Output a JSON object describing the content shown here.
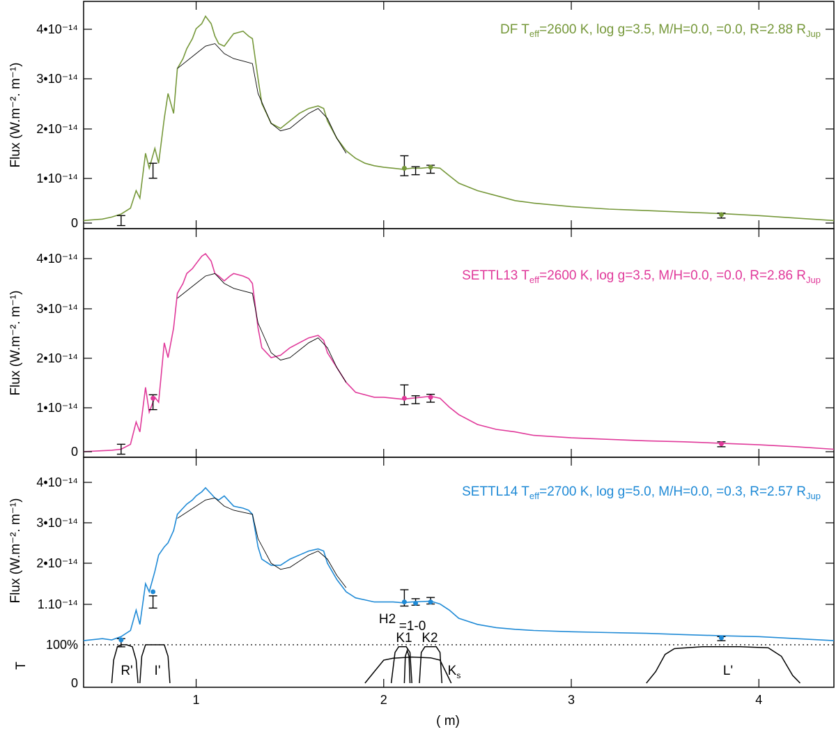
{
  "chart_data": [
    {
      "type": "line",
      "panel": "top",
      "model_label": {
        "prefix": "DF T",
        "sub": "eff",
        "rest": "=2600 K, log g=3.5, M/H=0.0,    =0.0, R=2.88 R",
        "sub2": "Jup"
      },
      "color": "#76983a",
      "ylabel": "Flux (W.m⁻². m⁻¹)",
      "yticks": [
        "0",
        "1•10⁻¹⁴",
        "2•10⁻¹⁴",
        "3•10⁻¹⁴",
        "4•10⁻¹⁴"
      ],
      "ylim": [
        0,
        4.5
      ],
      "series": [
        {
          "x": [
            0.4,
            0.5,
            0.55,
            0.6,
            0.65,
            0.68,
            0.7,
            0.73,
            0.75,
            0.78,
            0.8,
            0.83,
            0.85,
            0.88,
            0.9,
            0.93,
            0.95,
            0.98,
            1.0,
            1.03,
            1.05,
            1.08,
            1.1,
            1.12,
            1.15,
            1.18,
            1.2,
            1.25,
            1.28,
            1.3,
            1.33,
            1.35,
            1.4,
            1.45,
            1.5,
            1.55,
            1.6,
            1.65,
            1.68,
            1.7,
            1.75,
            1.8,
            1.85,
            1.9,
            1.95,
            2.0,
            2.05,
            2.1,
            2.15,
            2.2,
            2.25,
            2.3,
            2.35,
            2.4,
            2.5,
            2.6,
            2.7,
            2.8,
            3.0,
            3.2,
            3.4,
            3.6,
            3.8,
            4.0,
            4.2,
            4.4
          ],
          "y": [
            0.05,
            0.08,
            0.12,
            0.18,
            0.3,
            0.65,
            0.5,
            1.4,
            1.1,
            1.5,
            1.2,
            2.1,
            2.6,
            2.2,
            3.1,
            3.3,
            3.5,
            3.7,
            3.9,
            4.0,
            4.15,
            4.0,
            3.75,
            3.6,
            3.55,
            3.7,
            3.8,
            3.85,
            3.75,
            3.7,
            2.9,
            2.4,
            2.0,
            1.9,
            2.05,
            2.2,
            2.3,
            2.35,
            2.3,
            2.05,
            1.7,
            1.45,
            1.3,
            1.2,
            1.15,
            1.12,
            1.1,
            1.08,
            1.1,
            1.1,
            1.12,
            1.1,
            0.95,
            0.8,
            0.65,
            0.55,
            0.45,
            0.4,
            0.33,
            0.28,
            0.25,
            0.22,
            0.19,
            0.15,
            0.1,
            0.05
          ]
        }
      ],
      "observed": {
        "x": [
          0.9,
          1.0,
          1.05,
          1.1,
          1.15,
          1.2,
          1.25,
          1.3,
          1.33,
          1.4,
          1.45,
          1.5,
          1.55,
          1.6,
          1.65,
          1.7,
          1.75,
          1.8
        ],
        "y": [
          3.1,
          3.4,
          3.55,
          3.6,
          3.4,
          3.3,
          3.25,
          3.2,
          2.6,
          2.0,
          1.85,
          1.9,
          2.05,
          2.2,
          2.3,
          2.1,
          1.7,
          1.4
        ]
      },
      "photometry": [
        {
          "x": 0.6,
          "y": 0.05,
          "err": 0.1
        },
        {
          "x": 0.77,
          "y": 1.05,
          "err": 0.15
        },
        {
          "x": 2.11,
          "y": 1.15,
          "err": 0.2
        },
        {
          "x": 2.17,
          "y": 1.05,
          "err": 0.08
        },
        {
          "x": 2.25,
          "y": 1.08,
          "err": 0.08
        },
        {
          "x": 3.8,
          "y": 0.15,
          "err": 0.05
        }
      ],
      "model_points": [
        {
          "x": 2.11,
          "y": 1.1
        },
        {
          "x": 2.25,
          "y": 1.12
        },
        {
          "x": 3.8,
          "y": 0.17
        }
      ]
    },
    {
      "type": "line",
      "panel": "middle",
      "model_label": {
        "prefix": "SETTL13 T",
        "sub": "eff",
        "rest": "=2600 K, log g=3.5, M/H=0.0,    =0.0, R=2.86 R",
        "sub2": "Jup"
      },
      "color": "#e0399a",
      "ylabel": "Flux (W.m⁻². m⁻¹)",
      "yticks": [
        "0",
        "1•10⁻¹⁴",
        "2•10⁻¹⁴",
        "3•10⁻¹⁴",
        "4•10⁻¹⁴"
      ],
      "ylim": [
        0,
        4.5
      ],
      "series": [
        {
          "x": [
            0.4,
            0.5,
            0.55,
            0.6,
            0.65,
            0.68,
            0.7,
            0.73,
            0.75,
            0.78,
            0.8,
            0.83,
            0.85,
            0.88,
            0.9,
            0.93,
            0.95,
            0.98,
            1.0,
            1.03,
            1.05,
            1.08,
            1.1,
            1.12,
            1.15,
            1.18,
            1.2,
            1.25,
            1.28,
            1.3,
            1.33,
            1.35,
            1.4,
            1.45,
            1.5,
            1.55,
            1.6,
            1.65,
            1.68,
            1.7,
            1.75,
            1.8,
            1.85,
            1.9,
            1.95,
            2.0,
            2.05,
            2.1,
            2.15,
            2.2,
            2.25,
            2.3,
            2.35,
            2.4,
            2.5,
            2.6,
            2.7,
            2.8,
            3.0,
            3.2,
            3.4,
            3.6,
            3.8,
            4.0,
            4.2,
            4.4
          ],
          "y": [
            0.0,
            0.02,
            0.03,
            0.05,
            0.15,
            0.6,
            0.4,
            1.3,
            0.8,
            1.1,
            1.0,
            2.2,
            1.9,
            2.5,
            3.2,
            3.4,
            3.6,
            3.7,
            3.8,
            3.95,
            4.0,
            3.85,
            3.6,
            3.55,
            3.45,
            3.55,
            3.6,
            3.55,
            3.5,
            3.4,
            2.5,
            2.1,
            1.9,
            1.95,
            2.1,
            2.2,
            2.3,
            2.35,
            2.25,
            2.0,
            1.7,
            1.4,
            1.2,
            1.15,
            1.1,
            1.1,
            1.08,
            1.06,
            1.08,
            1.1,
            1.12,
            1.08,
            0.9,
            0.75,
            0.55,
            0.45,
            0.4,
            0.33,
            0.28,
            0.25,
            0.22,
            0.2,
            0.17,
            0.14,
            0.1,
            0.05
          ]
        }
      ],
      "observed": {
        "x": [
          0.9,
          1.0,
          1.05,
          1.1,
          1.15,
          1.2,
          1.25,
          1.3,
          1.33,
          1.4,
          1.45,
          1.5,
          1.55,
          1.6,
          1.65,
          1.7,
          1.75,
          1.8
        ],
        "y": [
          3.1,
          3.4,
          3.55,
          3.6,
          3.4,
          3.3,
          3.25,
          3.2,
          2.6,
          2.0,
          1.85,
          1.9,
          2.05,
          2.2,
          2.3,
          2.1,
          1.7,
          1.4
        ]
      },
      "photometry": [
        {
          "x": 0.6,
          "y": 0.05,
          "err": 0.1
        },
        {
          "x": 0.77,
          "y": 1.0,
          "err": 0.15
        },
        {
          "x": 2.11,
          "y": 1.15,
          "err": 0.2
        },
        {
          "x": 2.17,
          "y": 1.05,
          "err": 0.08
        },
        {
          "x": 2.25,
          "y": 1.08,
          "err": 0.08
        },
        {
          "x": 3.8,
          "y": 0.15,
          "err": 0.05
        }
      ],
      "model_points": [
        {
          "x": 0.77,
          "y": 1.08
        },
        {
          "x": 2.11,
          "y": 1.08
        },
        {
          "x": 2.25,
          "y": 1.1
        },
        {
          "x": 3.8,
          "y": 0.16
        }
      ]
    },
    {
      "type": "line",
      "panel": "bottom",
      "model_label": {
        "prefix": "SETTL14 T",
        "sub": "eff",
        "rest": "=2700 K, log g=5.0, M/H=0.0,    =0.3, R=2.57 R",
        "sub2": "Jup"
      },
      "color": "#1f8ad6",
      "ylabel": "Flux (W.m⁻². m⁻¹)",
      "yticks": [
        "1.10⁻¹⁴",
        "2•10⁻¹⁴",
        "3•10⁻¹⁴",
        "4•10⁻¹⁴"
      ],
      "ylim": [
        0,
        4.5
      ],
      "series": [
        {
          "x": [
            0.4,
            0.5,
            0.55,
            0.6,
            0.65,
            0.68,
            0.7,
            0.73,
            0.75,
            0.78,
            0.8,
            0.83,
            0.85,
            0.88,
            0.9,
            0.93,
            0.95,
            0.98,
            1.0,
            1.03,
            1.05,
            1.08,
            1.1,
            1.12,
            1.15,
            1.18,
            1.2,
            1.25,
            1.28,
            1.3,
            1.33,
            1.35,
            1.4,
            1.45,
            1.5,
            1.55,
            1.6,
            1.65,
            1.68,
            1.7,
            1.75,
            1.8,
            1.85,
            1.9,
            1.95,
            2.0,
            2.05,
            2.1,
            2.15,
            2.2,
            2.25,
            2.3,
            2.35,
            2.4,
            2.5,
            2.6,
            2.7,
            2.8,
            3.0,
            3.2,
            3.4,
            3.6,
            3.8,
            4.0,
            4.2,
            4.4
          ],
          "y": [
            0.1,
            0.15,
            0.12,
            0.2,
            0.35,
            0.85,
            0.5,
            1.5,
            1.3,
            1.8,
            2.2,
            2.4,
            2.5,
            2.8,
            3.2,
            3.35,
            3.45,
            3.55,
            3.65,
            3.75,
            3.85,
            3.7,
            3.6,
            3.55,
            3.65,
            3.5,
            3.4,
            3.35,
            3.3,
            3.2,
            2.4,
            2.1,
            1.95,
            1.95,
            2.1,
            2.2,
            2.3,
            2.35,
            2.3,
            2.0,
            1.6,
            1.3,
            1.15,
            1.1,
            1.05,
            1.05,
            1.05,
            1.03,
            1.05,
            1.06,
            1.07,
            1.0,
            0.85,
            0.65,
            0.5,
            0.42,
            0.38,
            0.35,
            0.32,
            0.3,
            0.28,
            0.25,
            0.22,
            0.2,
            0.15,
            0.1
          ]
        }
      ],
      "observed": {
        "x": [
          0.9,
          1.0,
          1.05,
          1.1,
          1.15,
          1.2,
          1.25,
          1.3,
          1.33,
          1.4,
          1.45,
          1.5,
          1.55,
          1.6,
          1.65,
          1.7,
          1.75,
          1.8
        ],
        "y": [
          3.1,
          3.4,
          3.55,
          3.6,
          3.4,
          3.3,
          3.25,
          3.2,
          2.6,
          2.0,
          1.85,
          1.9,
          2.05,
          2.2,
          2.3,
          2.1,
          1.7,
          1.4
        ]
      },
      "photometry": [
        {
          "x": 0.6,
          "y": 0.05,
          "err": 0.1
        },
        {
          "x": 0.77,
          "y": 1.05,
          "err": 0.15
        },
        {
          "x": 2.11,
          "y": 1.15,
          "err": 0.2
        },
        {
          "x": 2.17,
          "y": 1.05,
          "err": 0.08
        },
        {
          "x": 2.25,
          "y": 1.08,
          "err": 0.08
        },
        {
          "x": 3.8,
          "y": 0.15,
          "err": 0.05
        }
      ],
      "model_points": [
        {
          "x": 0.6,
          "y": 0.12
        },
        {
          "x": 0.77,
          "y": 1.3
        },
        {
          "x": 2.11,
          "y": 1.05
        },
        {
          "x": 2.17,
          "y": 1.02
        },
        {
          "x": 2.25,
          "y": 1.05
        },
        {
          "x": 3.8,
          "y": 0.17
        }
      ]
    },
    {
      "type": "line",
      "panel": "filters",
      "ylabel": "T",
      "yticks": [
        "0",
        "100%"
      ],
      "xlabel": "(  m)",
      "xticks": [
        "1",
        "2",
        "3",
        "4"
      ],
      "xlim": [
        0.4,
        4.4
      ],
      "filters": [
        {
          "name": "R'",
          "x": [
            0.55,
            0.56,
            0.58,
            0.6,
            0.63,
            0.66,
            0.68,
            0.69
          ],
          "y": [
            0,
            0.6,
            0.95,
            1,
            1,
            0.95,
            0.6,
            0
          ]
        },
        {
          "name": "I'",
          "x": [
            0.7,
            0.71,
            0.73,
            0.78,
            0.83,
            0.85,
            0.86
          ],
          "y": [
            0,
            0.7,
            1,
            1,
            1,
            0.7,
            0
          ]
        },
        {
          "name": "Ks",
          "x": [
            1.9,
            1.95,
            2.0,
            2.05,
            2.15,
            2.25,
            2.3,
            2.33,
            2.36
          ],
          "y": [
            0,
            0.3,
            0.6,
            0.65,
            0.68,
            0.66,
            0.6,
            0.3,
            0
          ]
        },
        {
          "name": "H2",
          "x": [
            2.11,
            2.115,
            2.125,
            2.135,
            2.14
          ],
          "y": [
            0,
            0.7,
            0.85,
            0.7,
            0
          ]
        },
        {
          "name": "K1",
          "x": [
            2.04,
            2.06,
            2.08,
            2.1,
            2.12,
            2.14,
            2.15
          ],
          "y": [
            0,
            0.8,
            0.95,
            0.95,
            0.95,
            0.8,
            0
          ]
        },
        {
          "name": "K2",
          "x": [
            2.19,
            2.2,
            2.22,
            2.25,
            2.28,
            2.3,
            2.31
          ],
          "y": [
            0,
            0.8,
            0.95,
            0.95,
            0.95,
            0.8,
            0
          ]
        },
        {
          "name": "L'",
          "x": [
            3.4,
            3.45,
            3.5,
            3.55,
            3.7,
            3.9,
            4.05,
            4.12,
            4.18,
            4.22
          ],
          "y": [
            0,
            0.3,
            0.75,
            0.9,
            0.95,
            0.95,
            0.92,
            0.7,
            0.2,
            0
          ]
        }
      ],
      "filter_labels": [
        "R'",
        "I'",
        "H2",
        "=1-0",
        "K1",
        "K2",
        "K",
        "s",
        "L'"
      ]
    }
  ]
}
